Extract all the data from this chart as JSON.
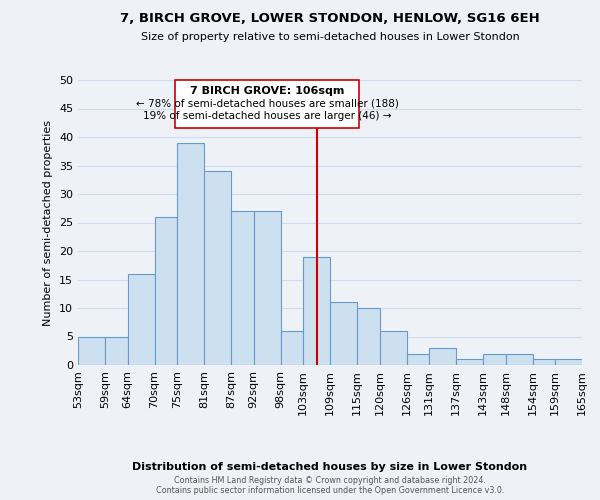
{
  "title": "7, BIRCH GROVE, LOWER STONDON, HENLOW, SG16 6EH",
  "subtitle": "Size of property relative to semi-detached houses in Lower Stondon",
  "xlabel": "Distribution of semi-detached houses by size in Lower Stondon",
  "ylabel": "Number of semi-detached properties",
  "bins": [
    53,
    59,
    64,
    70,
    75,
    81,
    87,
    92,
    98,
    103,
    109,
    115,
    120,
    126,
    131,
    137,
    143,
    148,
    154,
    159,
    165
  ],
  "bin_labels": [
    "53sqm",
    "59sqm",
    "64sqm",
    "70sqm",
    "75sqm",
    "81sqm",
    "87sqm",
    "92sqm",
    "98sqm",
    "103sqm",
    "109sqm",
    "115sqm",
    "120sqm",
    "126sqm",
    "131sqm",
    "137sqm",
    "143sqm",
    "148sqm",
    "154sqm",
    "159sqm",
    "165sqm"
  ],
  "counts": [
    5,
    5,
    16,
    26,
    39,
    34,
    27,
    27,
    6,
    19,
    11,
    10,
    6,
    2,
    3,
    1,
    2,
    2,
    1,
    1
  ],
  "bar_color": "#cce0f0",
  "bar_edge_color": "#6699cc",
  "property_value": 106,
  "property_label": "7 BIRCH GROVE: 106sqm",
  "vline_color": "#cc0000",
  "ann_line1": "7 BIRCH GROVE: 106sqm",
  "ann_line2": "← 78% of semi-detached houses are smaller (188)",
  "ann_line3": "19% of semi-detached houses are larger (46) →",
  "annotation_box_edge": "#cc0000",
  "ylim": [
    0,
    50
  ],
  "yticks": [
    0,
    5,
    10,
    15,
    20,
    25,
    30,
    35,
    40,
    45,
    50
  ],
  "grid_color": "#ccddee",
  "footer_text": "Contains HM Land Registry data © Crown copyright and database right 2024.\nContains public sector information licensed under the Open Government Licence v3.0.",
  "background_color": "#eef2f7"
}
